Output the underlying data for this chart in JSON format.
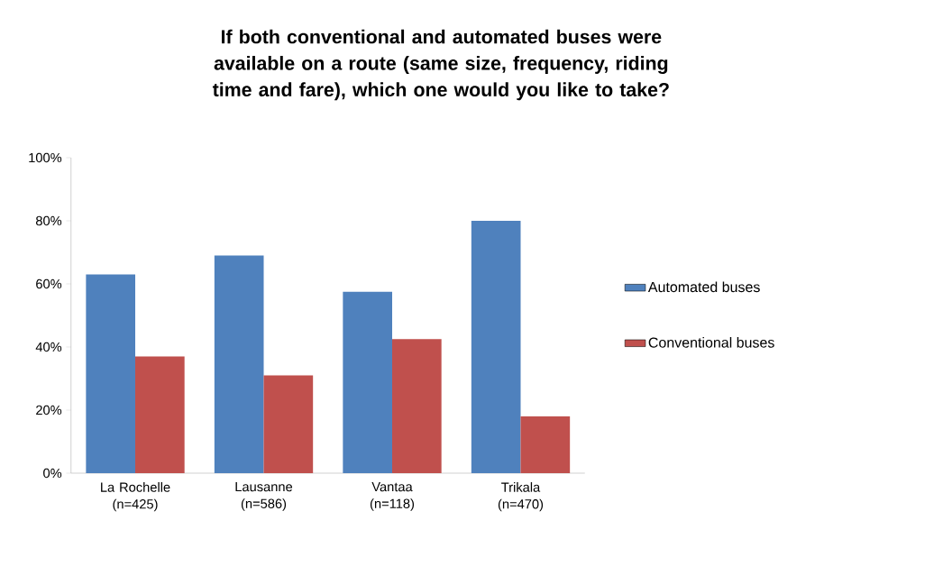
{
  "chart_data": {
    "type": "bar",
    "title": "If both conventional and automated buses were available on a route (same size, frequency, riding time and fare), which one would you like to take?",
    "categories": [
      "La Rochelle (n=425)",
      "Lausanne (n=586)",
      "Vantaa (n=118)",
      "Trikala (n=470)"
    ],
    "series": [
      {
        "name": "Automated buses",
        "color": "#4f81bd",
        "values": [
          63,
          69,
          57.5,
          80
        ]
      },
      {
        "name": "Conventional buses",
        "color": "#c0504d",
        "values": [
          37,
          31,
          42.5,
          18
        ]
      }
    ],
    "ylim": [
      0,
      100
    ],
    "yticks": [
      {
        "value": 0,
        "label": "0%"
      },
      {
        "value": 20,
        "label": "20%"
      },
      {
        "value": 40,
        "label": "40%"
      },
      {
        "value": 60,
        "label": "60%"
      },
      {
        "value": 80,
        "label": "80%"
      },
      {
        "value": 100,
        "label": "100%"
      }
    ],
    "grid": false,
    "legend": "right"
  }
}
